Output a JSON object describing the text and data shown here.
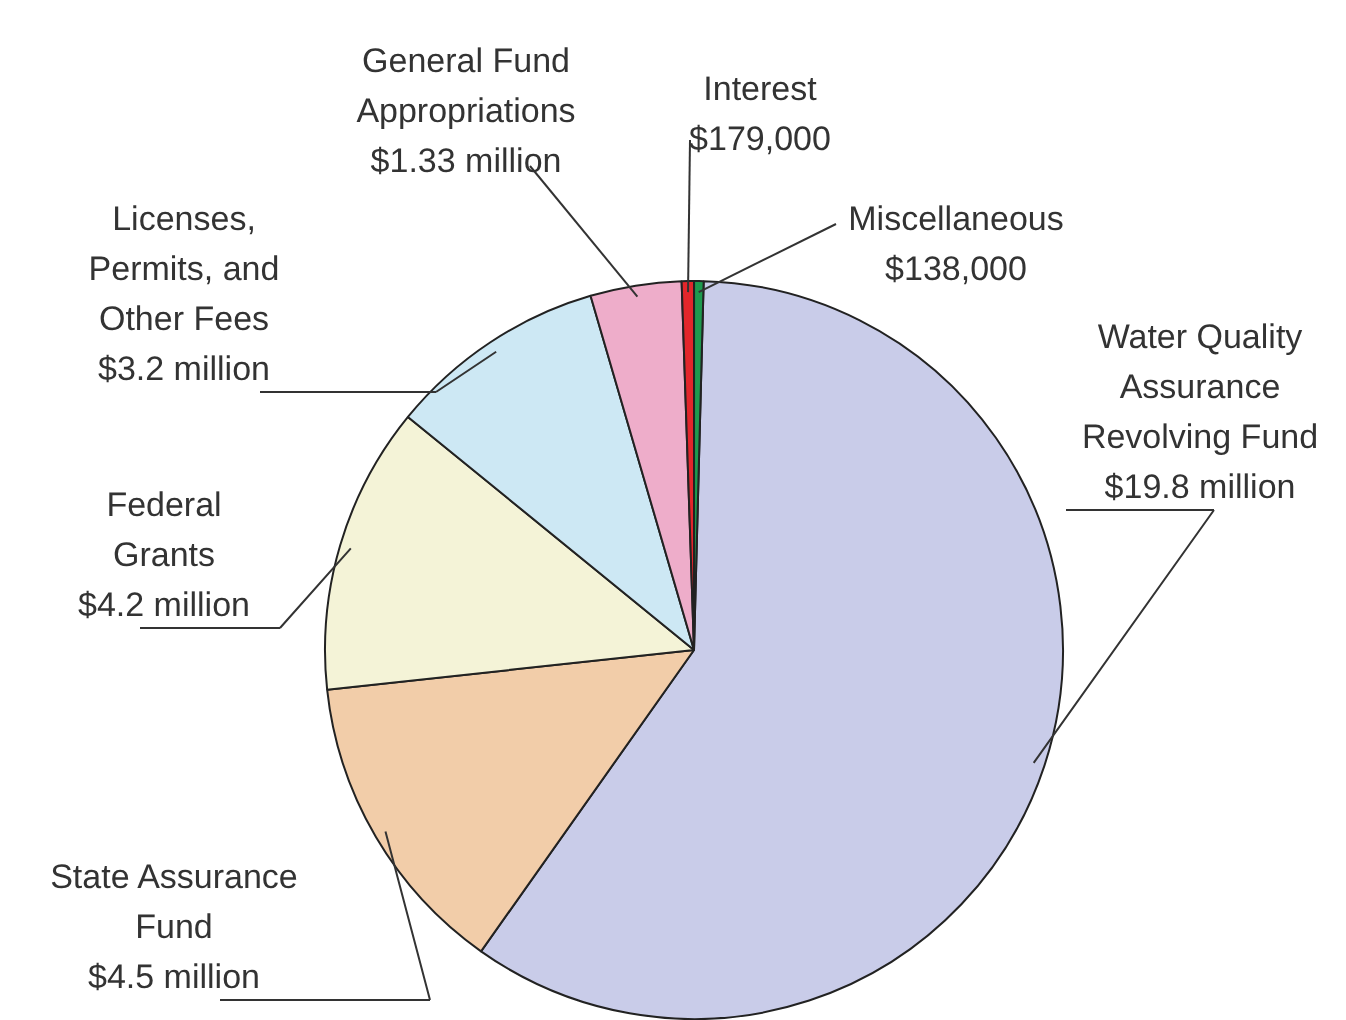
{
  "chart_data": {
    "type": "pie",
    "categories": [
      "Water Quality Assurance Revolving Fund",
      "State Assurance Fund",
      "Federal Grants",
      "Licenses, Permits, and Other Fees",
      "General Fund Appropriations",
      "Interest",
      "Miscellaneous"
    ],
    "values": [
      19800000,
      4500000,
      4200000,
      3200000,
      1330000,
      179000,
      138000
    ],
    "value_labels": [
      "$19.8 million",
      "$4.5 million",
      "$4.2 million",
      "$3.2 million",
      "$1.33 million",
      "$179,000",
      "$138,000"
    ],
    "colors": [
      "#c9cce9",
      "#f2cda9",
      "#f4f3d7",
      "#cde8f4",
      "#eeadca",
      "#e3262b",
      "#1e9a4e"
    ]
  }
}
